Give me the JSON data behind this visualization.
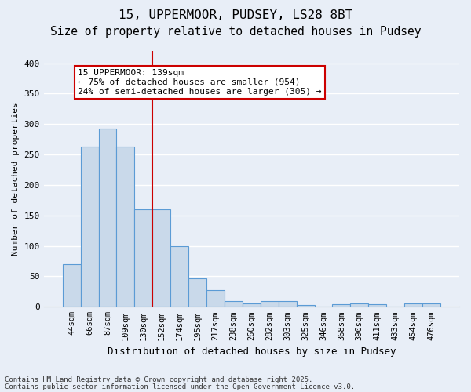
{
  "title1": "15, UPPERMOOR, PUDSEY, LS28 8BT",
  "title2": "Size of property relative to detached houses in Pudsey",
  "xlabel": "Distribution of detached houses by size in Pudsey",
  "ylabel": "Number of detached properties",
  "categories": [
    "44sqm",
    "66sqm",
    "87sqm",
    "109sqm",
    "130sqm",
    "152sqm",
    "174sqm",
    "195sqm",
    "217sqm",
    "238sqm",
    "260sqm",
    "282sqm",
    "303sqm",
    "325sqm",
    "346sqm",
    "368sqm",
    "390sqm",
    "411sqm",
    "433sqm",
    "454sqm",
    "476sqm"
  ],
  "values": [
    70,
    263,
    293,
    263,
    160,
    160,
    100,
    47,
    27,
    9,
    6,
    9,
    9,
    3,
    0,
    4,
    5,
    4,
    0,
    5,
    5
  ],
  "bar_color": "#c9d9ea",
  "bar_edge_color": "#5b9bd5",
  "vline_index": 4,
  "vline_color": "#cc0000",
  "annotation_text": "15 UPPERMOOR: 139sqm\n← 75% of detached houses are smaller (954)\n24% of semi-detached houses are larger (305) →",
  "annotation_box_facecolor": "#ffffff",
  "annotation_box_edgecolor": "#cc0000",
  "ylim": [
    0,
    420
  ],
  "yticks": [
    0,
    50,
    100,
    150,
    200,
    250,
    300,
    350,
    400
  ],
  "background_color": "#e8eef7",
  "grid_color": "#ffffff",
  "footer1": "Contains HM Land Registry data © Crown copyright and database right 2025.",
  "footer2": "Contains public sector information licensed under the Open Government Licence v3.0.",
  "title_fontsize": 11.5,
  "subtitle_fontsize": 10.5,
  "tick_fontsize": 7.5,
  "label_fontsize": 9,
  "annotation_fontsize": 8.0
}
